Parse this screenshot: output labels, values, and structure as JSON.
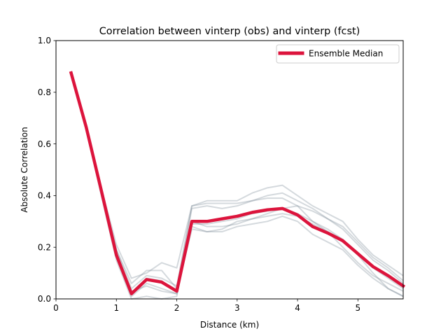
{
  "chart_data": {
    "type": "line",
    "title": "Correlation between vinterp (obs) and vinterp (fcst)",
    "xlabel": "Distance (km)",
    "ylabel": "Absolute Correlation",
    "xlim": [
      0,
      5.75
    ],
    "ylim": [
      0,
      1.0
    ],
    "xticks": [
      0,
      1,
      2,
      3,
      4,
      5
    ],
    "xtick_labels": [
      "0",
      "1",
      "2",
      "3",
      "4",
      "5"
    ],
    "yticks": [
      0,
      0.2,
      0.4,
      0.6,
      0.8,
      1.0
    ],
    "ytick_labels": [
      "0.0",
      "0.2",
      "0.4",
      "0.6",
      "0.8",
      "1.0"
    ],
    "grid": false,
    "legend": {
      "placement": "top-right",
      "entries": [
        "Ensemble Median"
      ]
    },
    "x": [
      0.25,
      0.5,
      0.75,
      1.0,
      1.25,
      1.5,
      1.75,
      2.0,
      2.25,
      2.5,
      2.75,
      3.0,
      3.25,
      3.5,
      3.75,
      4.0,
      4.25,
      4.5,
      4.75,
      5.0,
      5.25,
      5.5,
      5.75
    ],
    "median_color": "#dc143c",
    "member_color": "#708090",
    "series": [
      {
        "name": "Ensemble Median",
        "role": "median",
        "values": [
          0.875,
          0.665,
          0.42,
          0.17,
          0.02,
          0.075,
          0.065,
          0.03,
          0.3,
          0.3,
          0.31,
          0.32,
          0.335,
          0.345,
          0.35,
          0.325,
          0.28,
          0.255,
          0.225,
          0.175,
          0.125,
          0.09,
          0.05
        ]
      },
      {
        "role": "member",
        "values": [
          0.87,
          0.66,
          0.43,
          0.19,
          0.04,
          0.09,
          0.08,
          0.05,
          0.36,
          0.37,
          0.37,
          0.37,
          0.38,
          0.39,
          0.39,
          0.36,
          0.3,
          0.27,
          0.23,
          0.17,
          0.1,
          0.04,
          0.01
        ]
      },
      {
        "role": "member",
        "values": [
          0.87,
          0.67,
          0.42,
          0.16,
          0.01,
          0.06,
          0.04,
          0.02,
          0.29,
          0.29,
          0.3,
          0.31,
          0.33,
          0.34,
          0.35,
          0.33,
          0.3,
          0.26,
          0.2,
          0.14,
          0.09,
          0.06,
          0.03
        ]
      },
      {
        "role": "member",
        "values": [
          0.88,
          0.66,
          0.4,
          0.15,
          0.0,
          0.01,
          0.0,
          0.01,
          0.3,
          0.28,
          0.28,
          0.29,
          0.31,
          0.33,
          0.35,
          0.36,
          0.34,
          0.31,
          0.28,
          0.22,
          0.16,
          0.12,
          0.07
        ]
      },
      {
        "role": "member",
        "values": [
          0.87,
          0.67,
          0.43,
          0.21,
          0.08,
          0.1,
          0.14,
          0.12,
          0.36,
          0.38,
          0.38,
          0.38,
          0.41,
          0.43,
          0.44,
          0.4,
          0.36,
          0.33,
          0.3,
          0.23,
          0.17,
          0.13,
          0.09
        ]
      },
      {
        "role": "member",
        "values": [
          0.88,
          0.66,
          0.41,
          0.17,
          0.03,
          0.05,
          0.03,
          0.02,
          0.28,
          0.26,
          0.26,
          0.28,
          0.29,
          0.3,
          0.32,
          0.3,
          0.25,
          0.22,
          0.19,
          0.13,
          0.08,
          0.04,
          0.01
        ]
      },
      {
        "role": "member",
        "values": [
          0.87,
          0.67,
          0.42,
          0.19,
          0.06,
          0.11,
          0.11,
          0.04,
          0.35,
          0.36,
          0.35,
          0.36,
          0.38,
          0.4,
          0.41,
          0.38,
          0.35,
          0.31,
          0.27,
          0.21,
          0.15,
          0.11,
          0.06
        ]
      },
      {
        "role": "member",
        "values": [
          0.88,
          0.66,
          0.42,
          0.18,
          0.02,
          0.08,
          0.07,
          0.03,
          0.27,
          0.26,
          0.27,
          0.3,
          0.31,
          0.32,
          0.33,
          0.32,
          0.29,
          0.26,
          0.23,
          0.17,
          0.12,
          0.08,
          0.04
        ]
      }
    ]
  }
}
